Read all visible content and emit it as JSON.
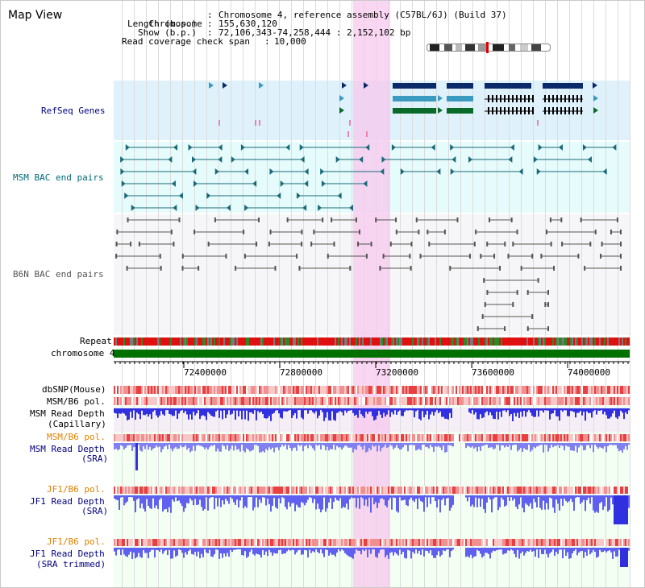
{
  "app": {
    "title": "Map View"
  },
  "info": {
    "chromosome_key": "Chromosome",
    "chromosome_value": "Chromosome 4, reference assembly (C57BL/6J) (Build 37)",
    "length_key": "Length (b.p.)",
    "length_value": "155,630,120",
    "show_key": "Show (b.p.)",
    "show_value": "72,106,343-74,258,444 : 2,152,102 bp",
    "coverage_key": "Read coverage check span",
    "coverage_value": "10,000"
  },
  "tracks": {
    "refseq": "RefSeq Genes",
    "msm_bac": "MSM BAC end pairs",
    "b6n_bac": "B6N BAC end pairs",
    "repeat": "Repeat",
    "chromosome": "chromosome 4",
    "dbsnp": "dbSNP(Mouse)",
    "msm_b6_pol_1": "MSM/B6 pol.",
    "msm_depth_cap_1": "MSM Read Depth",
    "msm_depth_cap_2": "(Capillary)",
    "msm_b6_pol_2": "MSM/B6 pol.",
    "msm_depth_sra_1": "MSM Read Depth",
    "msm_depth_sra_2": "(SRA)",
    "jf1_b6_pol_1": "JF1/B6 pol.",
    "jf1_depth_sra_1": "JF1 Read Depth",
    "jf1_depth_sra_2": "(SRA)",
    "jf1_b6_pol_2": "JF1/B6 pol.",
    "jf1_depth_trim_1": "JF1 Read Depth",
    "jf1_depth_trim_2": "(SRA trimmed)"
  },
  "axis": {
    "ticks": [
      "72400000",
      "72800000",
      "73200000",
      "73600000",
      "74000000"
    ]
  },
  "colors": {
    "refseq_bg": "#dff2fb",
    "msm_bg": "#e6fbfb",
    "b6n_bg": "#f4f4f8",
    "depth_bg": "#f0fff0",
    "chromosome_green": "#007000",
    "repeat_red": "#e01010",
    "depth_blue": "#3a3ae8",
    "highlight_pink": "#f7c8ee",
    "label_navy": "#000080",
    "label_teal": "#006b7a",
    "label_orange": "#e08000"
  }
}
